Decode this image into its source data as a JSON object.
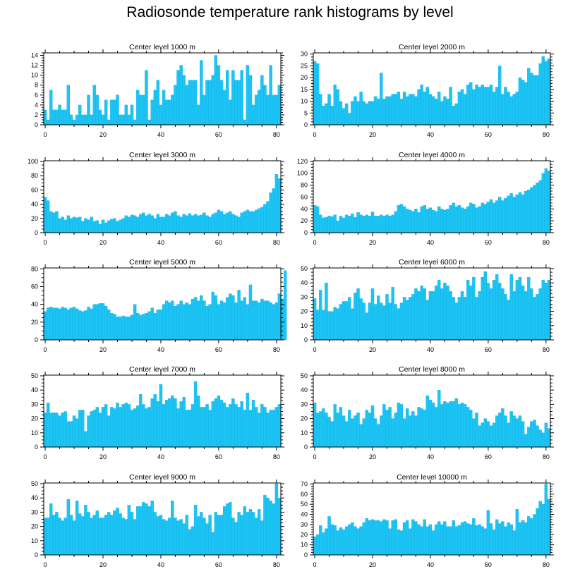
{
  "title": "Radiosonde temperature rank histograms by level",
  "colors": {
    "bar": "#1cc4f4",
    "bar_edge": "#0aa6dc",
    "axis": "#000000"
  },
  "chart_data": [
    {
      "type": "bar",
      "title": "Center level 1000 m",
      "x_ticks": [
        0,
        20,
        40,
        60,
        80
      ],
      "y_ticks": [
        0,
        2,
        4,
        6,
        8,
        10,
        12,
        14
      ],
      "ylim": [
        0,
        14.5
      ],
      "xlim": [
        -0.5,
        81.5
      ],
      "values": [
        3,
        1,
        7,
        3,
        3,
        4,
        3,
        3,
        8,
        2,
        1,
        2,
        4,
        2,
        2,
        6,
        2,
        8,
        6,
        3,
        2,
        5,
        1,
        5,
        5,
        6,
        2,
        2,
        4,
        2,
        4,
        1,
        7,
        6,
        6,
        11,
        1,
        5,
        7,
        9,
        4,
        7,
        5,
        5,
        6,
        8,
        11,
        12,
        10,
        8,
        9,
        9,
        9,
        4,
        13,
        6,
        9,
        9,
        10,
        14,
        12,
        9,
        7,
        11,
        5,
        11,
        9,
        9,
        11,
        1,
        12,
        10,
        4,
        6,
        7,
        10,
        8,
        6,
        12,
        6,
        6,
        8
      ]
    },
    {
      "type": "bar",
      "title": "Center level 2000 m",
      "x_ticks": [
        0,
        20,
        40,
        60,
        80
      ],
      "y_ticks": [
        0,
        5,
        10,
        15,
        20,
        25,
        30
      ],
      "ylim": [
        0,
        30.5
      ],
      "xlim": [
        -0.5,
        81.5
      ],
      "values": [
        27,
        26,
        13,
        8,
        9,
        13,
        8,
        17,
        15,
        10,
        7,
        9,
        5,
        10,
        12,
        10,
        14,
        10,
        9,
        10,
        10,
        12,
        11,
        22,
        11,
        12,
        12,
        13,
        13,
        14,
        11,
        14,
        12,
        13,
        13,
        12,
        15,
        17,
        14,
        16,
        13,
        12,
        11,
        14,
        10,
        12,
        11,
        16,
        8,
        9,
        14,
        15,
        13,
        17,
        18,
        15,
        17,
        16,
        17,
        16,
        16,
        17,
        14,
        16,
        25,
        13,
        16,
        14,
        12,
        13,
        14,
        20,
        19,
        18,
        24,
        22,
        21,
        21,
        26,
        29,
        27,
        28
      ]
    },
    {
      "type": "bar",
      "title": "Center level 3000 m",
      "x_ticks": [
        0,
        20,
        40,
        60,
        80
      ],
      "y_ticks": [
        0,
        20,
        40,
        60,
        80,
        100
      ],
      "ylim": [
        0,
        101
      ],
      "xlim": [
        -0.5,
        81.5
      ],
      "values": [
        50,
        45,
        30,
        28,
        30,
        20,
        22,
        18,
        24,
        20,
        22,
        21,
        22,
        16,
        20,
        18,
        22,
        16,
        17,
        12,
        18,
        14,
        17,
        19,
        20,
        16,
        18,
        20,
        24,
        22,
        25,
        24,
        22,
        26,
        28,
        24,
        26,
        24,
        20,
        26,
        22,
        22,
        26,
        24,
        28,
        30,
        24,
        22,
        26,
        24,
        27,
        24,
        26,
        24,
        25,
        28,
        24,
        22,
        26,
        28,
        32,
        30,
        26,
        28,
        30,
        26,
        24,
        22,
        28,
        30,
        32,
        30,
        30,
        32,
        34,
        36,
        40,
        44,
        56,
        62,
        82,
        76
      ]
    },
    {
      "type": "bar",
      "title": "Center level 4000 m",
      "x_ticks": [
        0,
        20,
        40,
        60,
        80
      ],
      "y_ticks": [
        0,
        20,
        40,
        60,
        80,
        100,
        120
      ],
      "ylim": [
        0,
        121
      ],
      "xlim": [
        -0.5,
        81.5
      ],
      "values": [
        46,
        44,
        30,
        25,
        26,
        28,
        27,
        30,
        20,
        28,
        25,
        30,
        28,
        32,
        26,
        34,
        30,
        28,
        30,
        28,
        35,
        28,
        28,
        30,
        28,
        30,
        28,
        30,
        36,
        46,
        48,
        44,
        40,
        38,
        36,
        40,
        34,
        44,
        46,
        40,
        42,
        38,
        36,
        44,
        40,
        38,
        40,
        46,
        50,
        44,
        46,
        42,
        40,
        44,
        50,
        48,
        42,
        44,
        50,
        48,
        52,
        56,
        50,
        54,
        60,
        54,
        58,
        62,
        66,
        60,
        64,
        68,
        64,
        70,
        72,
        76,
        80,
        84,
        88,
        100,
        108,
        104
      ]
    },
    {
      "type": "bar",
      "title": "Center level 5000 m",
      "x_ticks": [
        0,
        20,
        40,
        60,
        80
      ],
      "y_ticks": [
        0,
        20,
        40,
        60,
        80
      ],
      "ylim": [
        0,
        81
      ],
      "xlim": [
        -0.5,
        81.5
      ],
      "values": [
        32,
        36,
        37,
        36,
        36,
        35,
        37,
        36,
        34,
        36,
        37,
        35,
        33,
        32,
        33,
        37,
        35,
        40,
        40,
        41,
        41,
        38,
        34,
        30,
        29,
        26,
        26,
        27,
        26,
        26,
        28,
        40,
        30,
        28,
        29,
        30,
        32,
        36,
        30,
        34,
        34,
        40,
        44,
        42,
        44,
        38,
        40,
        44,
        40,
        42,
        40,
        46,
        48,
        44,
        50,
        44,
        38,
        40,
        54,
        50,
        40,
        44,
        42,
        48,
        52,
        50,
        42,
        56,
        44,
        48,
        40,
        62,
        44,
        44,
        42,
        46,
        44,
        44,
        42,
        40,
        42,
        52,
        46,
        78
      ]
    },
    {
      "type": "bar",
      "title": "Center level 6000 m",
      "x_ticks": [
        0,
        20,
        40,
        60,
        80
      ],
      "y_ticks": [
        0,
        10,
        20,
        30,
        40,
        50
      ],
      "ylim": [
        0,
        50.5
      ],
      "xlim": [
        -0.5,
        81.5
      ],
      "values": [
        29,
        21,
        35,
        21,
        40,
        20,
        20,
        23,
        22,
        25,
        27,
        27,
        30,
        22,
        33,
        36,
        29,
        26,
        19,
        26,
        36,
        25,
        31,
        26,
        24,
        32,
        26,
        37,
        25,
        22,
        26,
        30,
        28,
        30,
        32,
        36,
        34,
        38,
        36,
        28,
        34,
        34,
        38,
        42,
        36,
        40,
        38,
        34,
        30,
        26,
        30,
        34,
        30,
        42,
        38,
        44,
        30,
        34,
        44,
        48,
        40,
        36,
        42,
        46,
        40,
        36,
        32,
        28,
        46,
        34,
        42,
        44,
        38,
        34,
        44,
        36,
        30,
        32,
        36,
        42,
        40,
        42
      ]
    },
    {
      "type": "bar",
      "title": "Center level 7000 m",
      "x_ticks": [
        0,
        20,
        40,
        60,
        80
      ],
      "y_ticks": [
        0,
        10,
        20,
        30,
        40,
        50
      ],
      "ylim": [
        0,
        50.5
      ],
      "xlim": [
        -0.5,
        81.5
      ],
      "values": [
        24,
        31,
        24,
        24,
        24,
        22,
        24,
        25,
        18,
        18,
        22,
        20,
        26,
        26,
        11,
        22,
        25,
        26,
        28,
        24,
        28,
        30,
        22,
        28,
        27,
        31,
        28,
        30,
        31,
        30,
        26,
        27,
        29,
        37,
        30,
        27,
        28,
        34,
        37,
        32,
        44,
        30,
        33,
        34,
        36,
        34,
        27,
        32,
        35,
        26,
        26,
        30,
        46,
        36,
        28,
        28,
        30,
        26,
        32,
        34,
        36,
        33,
        31,
        28,
        30,
        34,
        30,
        28,
        32,
        26,
        38,
        26,
        33,
        28,
        24,
        30,
        28,
        24,
        26,
        26,
        28,
        30
      ]
    },
    {
      "type": "bar",
      "title": "Center level 8000 m",
      "x_ticks": [
        0,
        20,
        40,
        60,
        80
      ],
      "y_ticks": [
        0,
        10,
        20,
        30,
        40,
        50
      ],
      "ylim": [
        0,
        50.5
      ],
      "xlim": [
        -0.5,
        81.5
      ],
      "values": [
        31,
        24,
        25,
        27,
        24,
        21,
        18,
        30,
        24,
        28,
        22,
        18,
        26,
        20,
        22,
        24,
        16,
        20,
        26,
        24,
        29,
        20,
        16,
        22,
        30,
        26,
        28,
        20,
        24,
        31,
        30,
        20,
        27,
        22,
        25,
        22,
        28,
        27,
        26,
        36,
        33,
        31,
        28,
        40,
        30,
        32,
        31,
        32,
        32,
        34,
        30,
        31,
        30,
        28,
        26,
        20,
        24,
        15,
        17,
        20,
        18,
        15,
        17,
        22,
        24,
        27,
        22,
        17,
        25,
        22,
        20,
        22,
        18,
        9,
        14,
        18,
        19,
        15,
        12,
        10,
        17,
        13
      ]
    },
    {
      "type": "bar",
      "title": "Center level 9000 m",
      "x_ticks": [
        0,
        20,
        40,
        60,
        80
      ],
      "y_ticks": [
        0,
        10,
        20,
        30,
        40,
        50
      ],
      "ylim": [
        0,
        50.5
      ],
      "xlim": [
        -0.5,
        81.5
      ],
      "values": [
        26,
        26,
        36,
        28,
        30,
        26,
        24,
        26,
        39,
        28,
        24,
        38,
        29,
        27,
        35,
        30,
        26,
        28,
        31,
        26,
        26,
        28,
        30,
        28,
        31,
        33,
        29,
        26,
        25,
        35,
        30,
        25,
        34,
        34,
        37,
        36,
        34,
        38,
        30,
        27,
        28,
        25,
        24,
        26,
        38,
        26,
        24,
        25,
        22,
        28,
        18,
        20,
        35,
        27,
        30,
        26,
        22,
        28,
        16,
        30,
        28,
        28,
        34,
        36,
        37,
        26,
        23,
        30,
        28,
        34,
        30,
        32,
        30,
        26,
        32,
        24,
        42,
        40,
        38,
        36,
        50,
        40
      ]
    },
    {
      "type": "bar",
      "title": "Center level 10000 m",
      "x_ticks": [
        0,
        20,
        40,
        60,
        80
      ],
      "y_ticks": [
        0,
        10,
        20,
        30,
        40,
        50,
        60,
        70
      ],
      "ylim": [
        0,
        71
      ],
      "xlim": [
        -0.5,
        81.5
      ],
      "values": [
        18,
        20,
        29,
        22,
        26,
        38,
        30,
        29,
        24,
        27,
        25,
        28,
        30,
        32,
        28,
        26,
        28,
        32,
        36,
        34,
        35,
        34,
        34,
        33,
        35,
        34,
        26,
        34,
        35,
        25,
        24,
        32,
        34,
        26,
        35,
        33,
        30,
        28,
        35,
        28,
        30,
        24,
        30,
        33,
        30,
        33,
        28,
        28,
        34,
        28,
        29,
        32,
        33,
        31,
        30,
        36,
        29,
        30,
        28,
        26,
        44,
        31,
        25,
        35,
        31,
        33,
        28,
        32,
        30,
        24,
        45,
        32,
        34,
        32,
        38,
        36,
        40,
        46,
        53,
        50,
        70,
        55
      ]
    }
  ]
}
